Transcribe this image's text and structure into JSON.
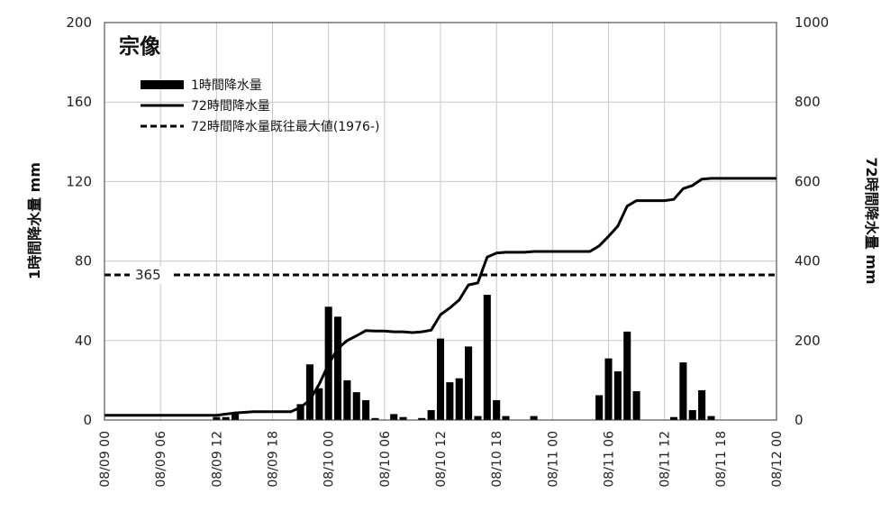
{
  "chart_data": {
    "type": "bar",
    "title": "宗像",
    "x_ticks": [
      "08/09 00",
      "08/09 06",
      "08/09 12",
      "08/09 18",
      "08/10 00",
      "08/10 06",
      "08/10 12",
      "08/10 18",
      "08/11 00",
      "08/11 06",
      "08/11 12",
      "08/11 18",
      "08/12 00"
    ],
    "x_range_hours": [
      0,
      72
    ],
    "y_left": {
      "label": "1時間降水量 mm",
      "lim": [
        0,
        200
      ],
      "ticks": [
        "0",
        "40",
        "80",
        "120",
        "160",
        "200"
      ]
    },
    "y_right": {
      "label": "72時間降水量 mm",
      "lim": [
        0,
        1000
      ],
      "ticks": [
        "0",
        "200",
        "400",
        "600",
        "800",
        "1000"
      ]
    },
    "grid": {
      "vertical": true,
      "horizontal": true
    },
    "legend": {
      "placement": "top-left"
    },
    "series": [
      {
        "name": "1時間降水量",
        "type": "bar",
        "axis": "left",
        "color": "#000000",
        "points": [
          [
            12,
            1.5
          ],
          [
            13,
            1.5
          ],
          [
            14,
            3
          ],
          [
            21,
            8
          ],
          [
            22,
            28
          ],
          [
            23,
            16
          ],
          [
            24,
            57
          ],
          [
            25,
            52
          ],
          [
            26,
            20
          ],
          [
            27,
            14
          ],
          [
            28,
            10
          ],
          [
            29,
            1
          ],
          [
            31,
            3
          ],
          [
            32,
            1.5
          ],
          [
            34,
            1
          ],
          [
            35,
            5
          ],
          [
            36,
            41
          ],
          [
            37,
            19
          ],
          [
            38,
            21
          ],
          [
            39,
            37
          ],
          [
            40,
            2
          ],
          [
            41,
            63
          ],
          [
            42,
            10
          ],
          [
            43,
            2
          ],
          [
            46,
            2
          ],
          [
            53,
            12.5
          ],
          [
            54,
            31
          ],
          [
            55,
            24.5
          ],
          [
            56,
            44.5
          ],
          [
            57,
            14.5
          ],
          [
            61,
            1.5
          ],
          [
            62,
            29
          ],
          [
            63,
            5
          ],
          [
            64,
            15
          ],
          [
            65,
            2
          ]
        ]
      },
      {
        "name": "72時間降水量",
        "type": "line",
        "axis": "right",
        "color": "#000000",
        "points": [
          [
            0,
            12
          ],
          [
            6,
            12
          ],
          [
            12,
            12
          ],
          [
            14,
            18
          ],
          [
            16,
            21
          ],
          [
            18,
            21
          ],
          [
            20,
            21
          ],
          [
            21,
            32
          ],
          [
            22,
            50
          ],
          [
            23,
            90
          ],
          [
            24,
            140
          ],
          [
            25,
            180
          ],
          [
            26,
            200
          ],
          [
            27,
            212
          ],
          [
            28,
            225
          ],
          [
            29,
            224
          ],
          [
            30,
            224
          ],
          [
            31,
            222
          ],
          [
            32,
            222
          ],
          [
            33,
            220
          ],
          [
            34,
            222
          ],
          [
            35,
            226
          ],
          [
            36,
            265
          ],
          [
            37,
            282
          ],
          [
            38,
            302
          ],
          [
            39,
            340
          ],
          [
            40,
            345
          ],
          [
            41,
            410
          ],
          [
            42,
            420
          ],
          [
            43,
            422
          ],
          [
            44,
            422
          ],
          [
            45,
            422
          ],
          [
            46,
            424
          ],
          [
            47,
            424
          ],
          [
            48,
            424
          ],
          [
            50,
            424
          ],
          [
            52,
            424
          ],
          [
            53,
            438
          ],
          [
            54,
            462
          ],
          [
            55,
            488
          ],
          [
            56,
            538
          ],
          [
            57,
            552
          ],
          [
            58,
            552
          ],
          [
            60,
            552
          ],
          [
            61,
            555
          ],
          [
            62,
            582
          ],
          [
            63,
            590
          ],
          [
            64,
            606
          ],
          [
            65,
            608
          ],
          [
            66,
            608
          ],
          [
            68,
            608
          ],
          [
            70,
            608
          ],
          [
            72,
            608
          ]
        ]
      },
      {
        "name": "72時間降水量既往最大値(1976-)",
        "type": "dashed-line",
        "axis": "right",
        "color": "#000000",
        "value": 365,
        "annotation": "365"
      }
    ]
  }
}
